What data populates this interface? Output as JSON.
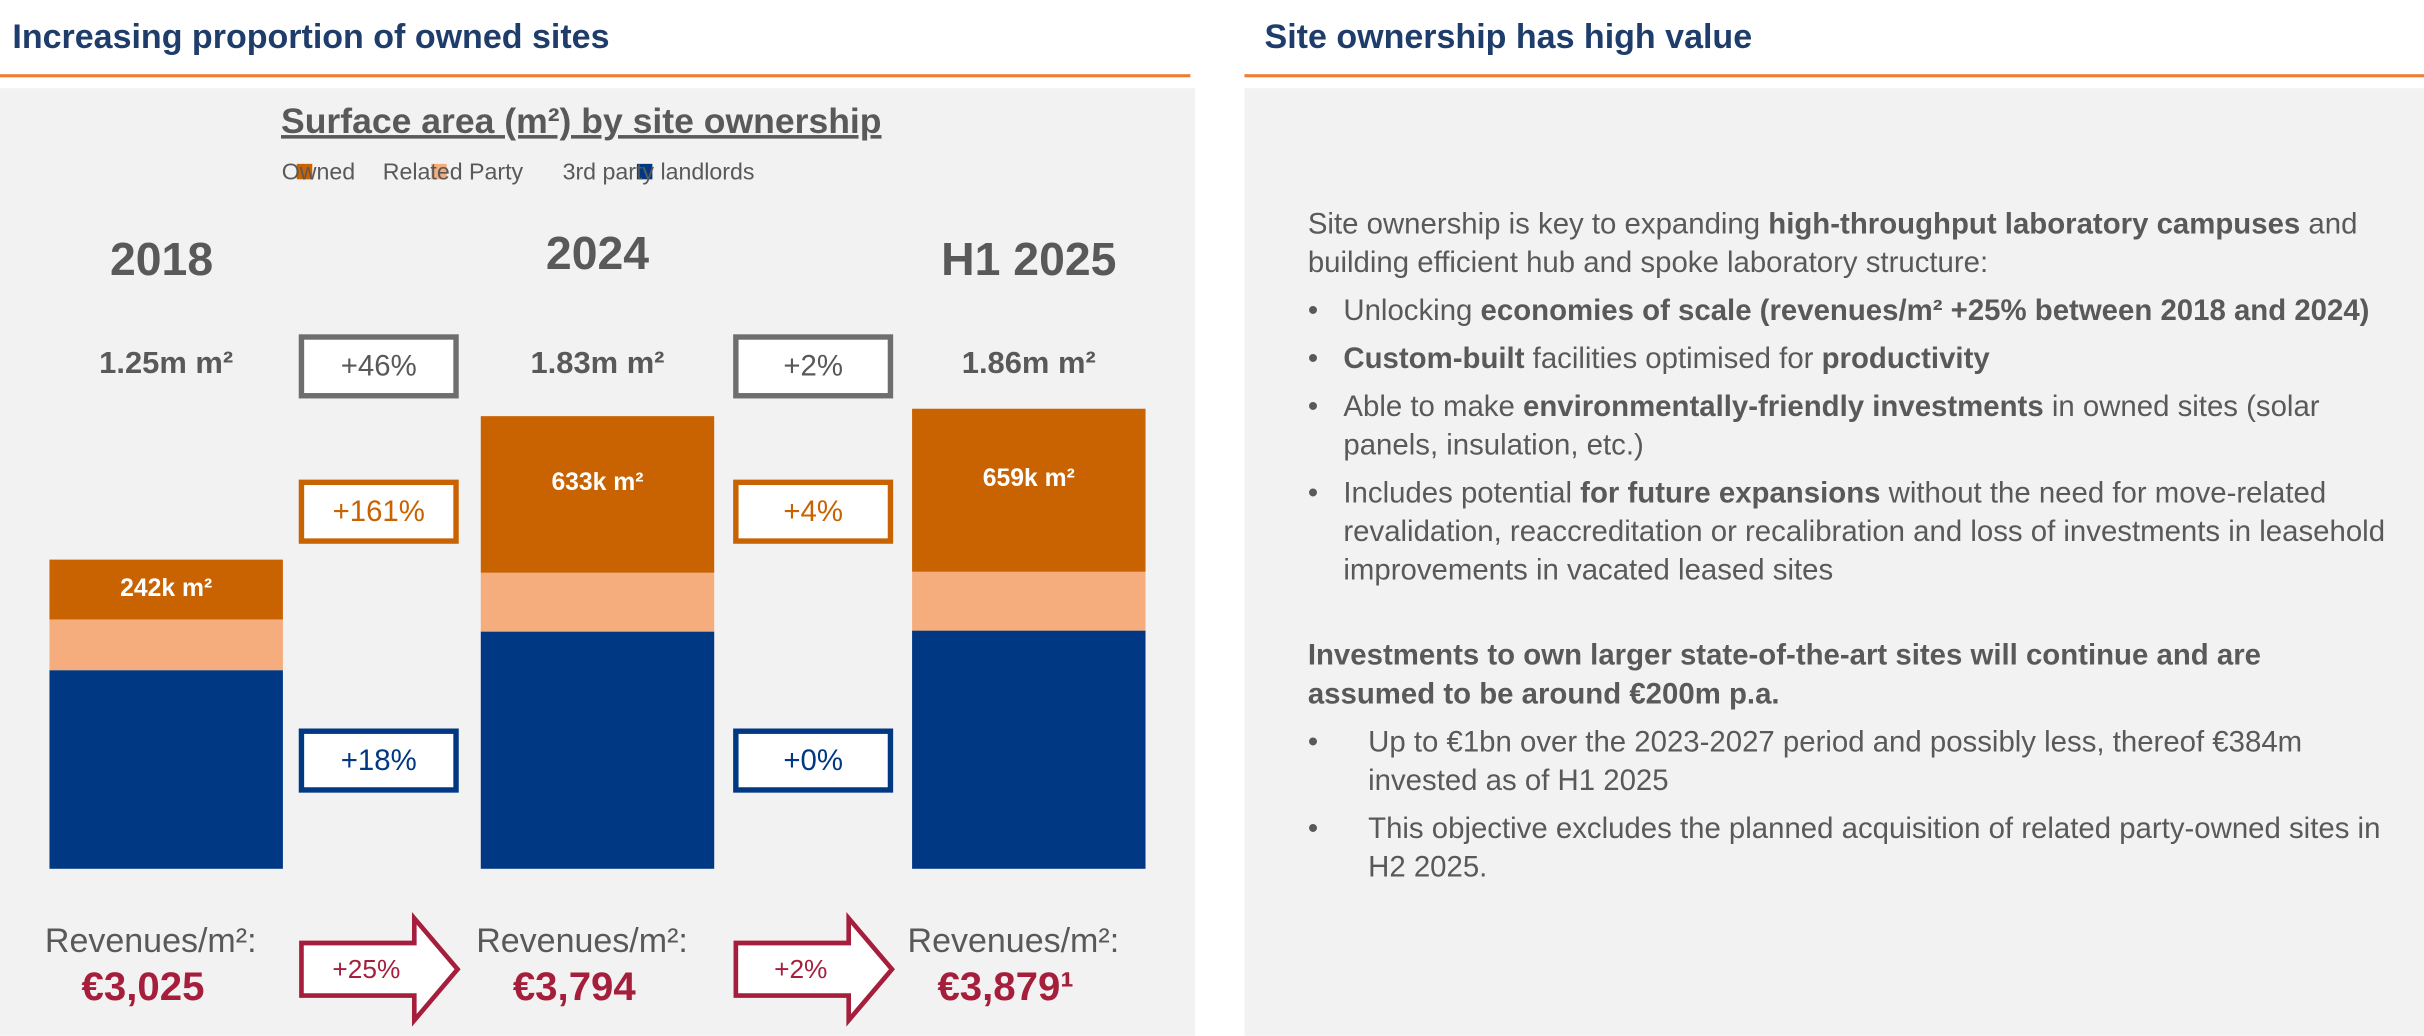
{
  "left": {
    "title": "Increasing proportion of owned sites"
  },
  "right": {
    "title": "Site ownership has high value",
    "intro": [
      {
        "text": "Site ownership is key to expanding ",
        "bold": false
      },
      {
        "text": "high-throughput laboratory campuses",
        "bold": true
      },
      {
        "text": " and building efficient hub and spoke laboratory structure:",
        "bold": false
      }
    ],
    "bullets": [
      [
        {
          "text": "Unlocking ",
          "bold": false
        },
        {
          "text": "economies of scale (revenues/m² +25% between 2018 and 2024)",
          "bold": true
        }
      ],
      [
        {
          "text": "Custom-built",
          "bold": true
        },
        {
          "text": " facilities optimised for ",
          "bold": false
        },
        {
          "text": "productivity",
          "bold": true
        }
      ],
      [
        {
          "text": "Able to make ",
          "bold": false
        },
        {
          "text": "environmentally-friendly investments",
          "bold": true
        },
        {
          "text": " in owned sites (solar panels, insulation, etc.)",
          "bold": false
        }
      ],
      [
        {
          "text": "Includes potential ",
          "bold": false
        },
        {
          "text": "for future expansions",
          "bold": true
        },
        {
          "text": " without the need for move-related revalidation, reaccreditation or recalibration and loss of investments in leasehold improvements in vacated leased sites",
          "bold": false
        }
      ]
    ],
    "second": "Investments to own larger state-of-the-art sites will continue and are assumed to be around €200m p.a.",
    "bullets2": [
      "Up to €1bn over the 2023-2027 period and possibly less, thereof €384m invested as of H1 2025",
      "This objective excludes the planned acquisition of related party-owned sites in H2 2025."
    ]
  },
  "chart_data": {
    "type": "bar",
    "stacked": true,
    "title": "Surface area (m²) by site ownership",
    "categories": [
      "2018",
      "2024",
      "H1 2025"
    ],
    "series": [
      {
        "name": "Owned",
        "color": "#c96200",
        "values": [
          242,
          633,
          659
        ],
        "value_labels": [
          "242k m²",
          "633k m²",
          "659k m²"
        ]
      },
      {
        "name": "Related Party",
        "color": "#f5ad7e",
        "values": [
          205,
          238,
          238
        ]
      },
      {
        "name": "3rd party landlords",
        "color": "#003883",
        "values": [
          803,
          959,
          963
        ]
      }
    ],
    "totals": [
      "1.25m m²",
      "1.83m m²",
      "1.86m m²"
    ],
    "changes": [
      {
        "total": "+46%",
        "owned": "+161%",
        "third": "+18%",
        "revenue": "+25%"
      },
      {
        "total": "+2%",
        "owned": "+4%",
        "third": "+0%",
        "revenue": "+2%"
      }
    ],
    "revenues_label": "Revenues/m²:",
    "revenues": [
      "€3,025",
      "€3,794",
      "€3,879¹"
    ]
  }
}
